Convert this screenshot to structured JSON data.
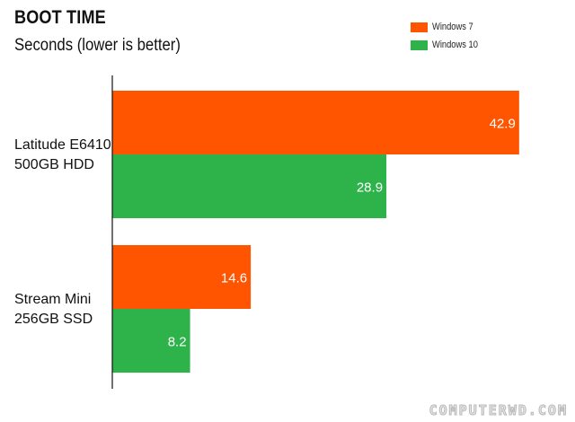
{
  "chart_data": {
    "type": "bar",
    "orientation": "horizontal",
    "title": "BOOT TIME",
    "subtitle": "Seconds (lower is better)",
    "categories": [
      [
        "Latitude E6410",
        "500GB HDD"
      ],
      [
        "Stream Mini",
        "256GB SSD"
      ]
    ],
    "series": [
      {
        "name": "Windows 7",
        "color": "#ff5500",
        "values": [
          42.9,
          14.6
        ]
      },
      {
        "name": "Windows 10",
        "color": "#2eb34a",
        "values": [
          28.9,
          8.2
        ]
      }
    ],
    "xlim": [
      0,
      45
    ],
    "grid": false,
    "legend": "top-right"
  },
  "watermark": "COMPUTERWD.COM"
}
